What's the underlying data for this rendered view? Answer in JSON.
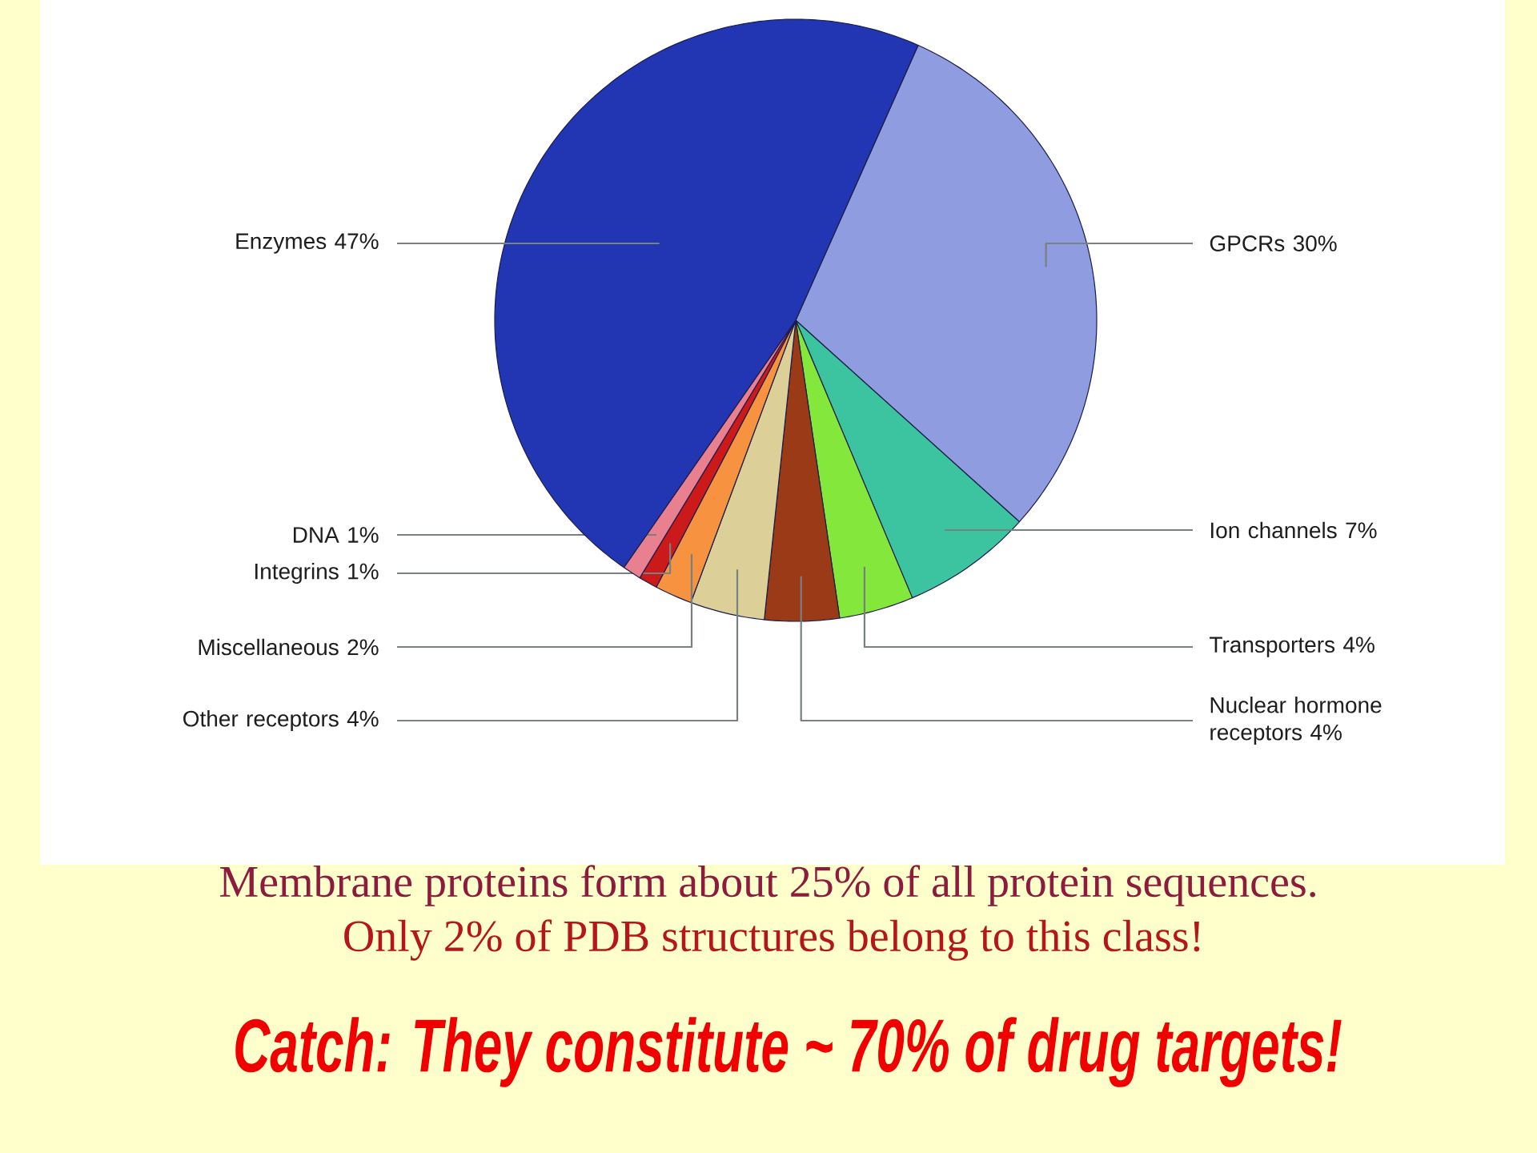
{
  "chart_data": {
    "type": "pie",
    "categories": [
      "GPCRs",
      "Ion channels",
      "Transporters",
      "Nuclear hormone receptors",
      "Other receptors",
      "Miscellaneous",
      "Integrins",
      "DNA",
      "Enzymes"
    ],
    "values": [
      30,
      7,
      4,
      4,
      4,
      2,
      1,
      1,
      47
    ],
    "value_labels": [
      "30%",
      "7%",
      "4%",
      "4%",
      "4%",
      "2%",
      "1%",
      "1%",
      "47%"
    ],
    "colors": [
      "#8f9ce0",
      "#3cc4a0",
      "#84e83c",
      "#9a3a16",
      "#dccf98",
      "#f79340",
      "#cc1a1a",
      "#e88090",
      "#2236b4"
    ],
    "annotations": [
      "Membrane proteins form about 25% of all protein sequences.",
      "Only 2% of PDB structures belong to this class!",
      "Catch: They constitute ~ 70% of drug targets!"
    ]
  }
}
